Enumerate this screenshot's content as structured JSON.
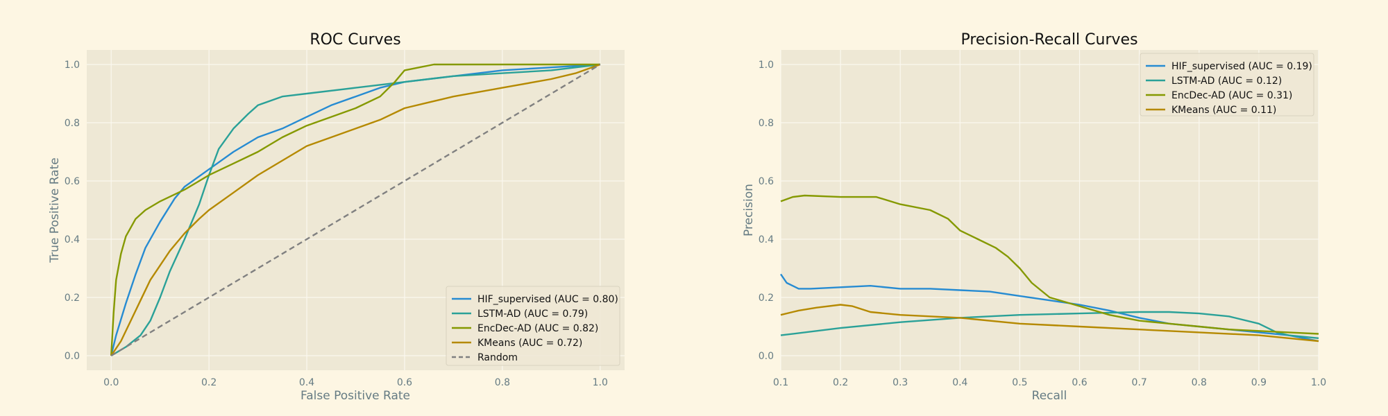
{
  "colors": {
    "figure_bg": "#fdf6e3",
    "axes_bg": "#eee8d5",
    "grid": "#fbf8ef",
    "text": "#657b83",
    "title": "#111111",
    "random_line": "#808080"
  },
  "chart_data": [
    {
      "type": "line",
      "title": "ROC Curves",
      "xlabel": "False Positive Rate",
      "ylabel": "True Positive Rate",
      "xlim": [
        -0.05,
        1.05
      ],
      "ylim": [
        -0.05,
        1.05
      ],
      "xticks": [
        0.0,
        0.2,
        0.4,
        0.6,
        0.8,
        1.0
      ],
      "yticks": [
        0.0,
        0.2,
        0.4,
        0.6,
        0.8,
        1.0
      ],
      "xtick_labels": [
        "0.0",
        "0.2",
        "0.4",
        "0.6",
        "0.8",
        "1.0"
      ],
      "ytick_labels": [
        "0.0",
        "0.2",
        "0.4",
        "0.6",
        "0.8",
        "1.0"
      ],
      "grid": true,
      "legend_position": "bottom-right",
      "series": [
        {
          "name": "HIF_supervised (AUC = 0.80)",
          "color": "#268bd2",
          "dash": false,
          "x": [
            0,
            0.01,
            0.03,
            0.05,
            0.07,
            0.1,
            0.13,
            0.15,
            0.2,
            0.25,
            0.3,
            0.35,
            0.4,
            0.45,
            0.5,
            0.55,
            0.6,
            0.7,
            0.8,
            0.9,
            1.0
          ],
          "y": [
            0,
            0.07,
            0.18,
            0.28,
            0.37,
            0.46,
            0.54,
            0.58,
            0.64,
            0.7,
            0.75,
            0.78,
            0.82,
            0.86,
            0.89,
            0.92,
            0.94,
            0.96,
            0.98,
            0.99,
            1.0
          ]
        },
        {
          "name": "LSTM-AD (AUC = 0.79)",
          "color": "#2aa198",
          "dash": false,
          "x": [
            0,
            0.03,
            0.06,
            0.08,
            0.1,
            0.12,
            0.15,
            0.18,
            0.2,
            0.22,
            0.25,
            0.28,
            0.3,
            0.35,
            0.4,
            0.5,
            0.6,
            0.7,
            0.8,
            0.9,
            1.0
          ],
          "y": [
            0,
            0.03,
            0.07,
            0.12,
            0.2,
            0.29,
            0.4,
            0.52,
            0.62,
            0.71,
            0.78,
            0.83,
            0.86,
            0.89,
            0.9,
            0.92,
            0.94,
            0.96,
            0.97,
            0.98,
            1.0
          ]
        },
        {
          "name": "EncDec-AD (AUC = 0.82)",
          "color": "#859900",
          "dash": false,
          "x": [
            0,
            0.005,
            0.01,
            0.02,
            0.03,
            0.05,
            0.07,
            0.1,
            0.15,
            0.2,
            0.25,
            0.3,
            0.35,
            0.4,
            0.45,
            0.5,
            0.55,
            0.58,
            0.6,
            0.63,
            0.66,
            0.7,
            0.8,
            0.9,
            1.0
          ],
          "y": [
            0,
            0.15,
            0.26,
            0.35,
            0.41,
            0.47,
            0.5,
            0.53,
            0.57,
            0.62,
            0.66,
            0.7,
            0.75,
            0.79,
            0.82,
            0.85,
            0.89,
            0.94,
            0.98,
            0.99,
            1.0,
            1.0,
            1.0,
            1.0,
            1.0
          ]
        },
        {
          "name": "KMeans (AUC = 0.72)",
          "color": "#b58900",
          "dash": false,
          "x": [
            0,
            0.02,
            0.04,
            0.06,
            0.08,
            0.1,
            0.12,
            0.15,
            0.18,
            0.2,
            0.25,
            0.3,
            0.35,
            0.4,
            0.45,
            0.5,
            0.55,
            0.6,
            0.65,
            0.7,
            0.8,
            0.9,
            0.95,
            1.0
          ],
          "y": [
            0,
            0.05,
            0.12,
            0.19,
            0.26,
            0.31,
            0.36,
            0.42,
            0.47,
            0.5,
            0.56,
            0.62,
            0.67,
            0.72,
            0.75,
            0.78,
            0.81,
            0.85,
            0.87,
            0.89,
            0.92,
            0.95,
            0.97,
            1.0
          ]
        },
        {
          "name": "Random",
          "color": "#808080",
          "dash": true,
          "x": [
            0,
            1
          ],
          "y": [
            0,
            1
          ]
        }
      ]
    },
    {
      "type": "line",
      "title": "Precision-Recall Curves",
      "xlabel": "Recall",
      "ylabel": "Precision",
      "xlim": [
        0.1,
        1.0
      ],
      "ylim": [
        -0.05,
        1.05
      ],
      "xticks": [
        0.1,
        0.2,
        0.3,
        0.4,
        0.5,
        0.6,
        0.7,
        0.8,
        0.9,
        1.0
      ],
      "yticks": [
        0.0,
        0.2,
        0.4,
        0.6,
        0.8,
        1.0
      ],
      "xtick_labels": [
        "0.1",
        "0.2",
        "0.3",
        "0.4",
        "0.5",
        "0.6",
        "0.7",
        "0.8",
        "0.9",
        "1.0"
      ],
      "ytick_labels": [
        "0.0",
        "0.2",
        "0.4",
        "0.6",
        "0.8",
        "1.0"
      ],
      "grid": true,
      "legend_position": "top-right",
      "series": [
        {
          "name": "HIF_supervised (AUC = 0.19)",
          "color": "#268bd2",
          "dash": false,
          "x": [
            0.1,
            0.11,
            0.13,
            0.15,
            0.2,
            0.25,
            0.3,
            0.35,
            0.4,
            0.45,
            0.5,
            0.55,
            0.6,
            0.65,
            0.7,
            0.75,
            0.8,
            0.85,
            0.9,
            0.95,
            1.0
          ],
          "y": [
            0.28,
            0.25,
            0.23,
            0.23,
            0.235,
            0.24,
            0.23,
            0.23,
            0.225,
            0.22,
            0.205,
            0.19,
            0.175,
            0.155,
            0.13,
            0.11,
            0.1,
            0.09,
            0.08,
            0.07,
            0.05
          ]
        },
        {
          "name": "LSTM-AD (AUC = 0.12)",
          "color": "#2aa198",
          "dash": false,
          "x": [
            0.1,
            0.2,
            0.3,
            0.4,
            0.5,
            0.6,
            0.7,
            0.75,
            0.8,
            0.85,
            0.9,
            0.93,
            0.95,
            1.0
          ],
          "y": [
            0.07,
            0.095,
            0.115,
            0.13,
            0.14,
            0.145,
            0.15,
            0.15,
            0.145,
            0.135,
            0.11,
            0.08,
            0.07,
            0.06
          ]
        },
        {
          "name": "EncDec-AD (AUC = 0.31)",
          "color": "#859900",
          "dash": false,
          "x": [
            0.1,
            0.12,
            0.14,
            0.2,
            0.26,
            0.3,
            0.35,
            0.38,
            0.4,
            0.43,
            0.46,
            0.48,
            0.5,
            0.52,
            0.55,
            0.6,
            0.65,
            0.7,
            0.75,
            0.8,
            0.85,
            0.9,
            0.95,
            1.0
          ],
          "y": [
            0.53,
            0.545,
            0.55,
            0.545,
            0.545,
            0.52,
            0.5,
            0.47,
            0.43,
            0.4,
            0.37,
            0.34,
            0.3,
            0.25,
            0.2,
            0.17,
            0.14,
            0.12,
            0.11,
            0.1,
            0.09,
            0.085,
            0.08,
            0.075
          ]
        },
        {
          "name": "KMeans (AUC = 0.11)",
          "color": "#b58900",
          "dash": false,
          "x": [
            0.1,
            0.13,
            0.16,
            0.2,
            0.22,
            0.25,
            0.3,
            0.35,
            0.4,
            0.5,
            0.6,
            0.7,
            0.8,
            0.9,
            0.95,
            1.0
          ],
          "y": [
            0.14,
            0.155,
            0.165,
            0.175,
            0.17,
            0.15,
            0.14,
            0.135,
            0.13,
            0.11,
            0.1,
            0.09,
            0.08,
            0.07,
            0.06,
            0.05
          ]
        }
      ]
    }
  ]
}
